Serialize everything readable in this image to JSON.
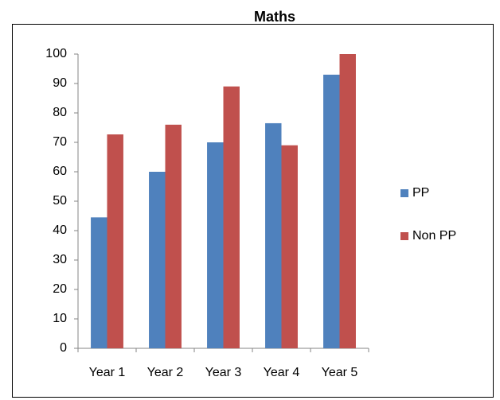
{
  "chart_data": {
    "type": "bar",
    "title": "Maths",
    "categories": [
      "Year 1",
      "Year 2",
      "Year 3",
      "Year 4",
      "Year 5"
    ],
    "series": [
      {
        "name": "PP",
        "color": "#4f81bd",
        "values": [
          44.5,
          60,
          70,
          76.5,
          93
        ]
      },
      {
        "name": "Non PP",
        "color": "#c0504d",
        "values": [
          72.7,
          76,
          89,
          69,
          100
        ]
      }
    ],
    "ylim": [
      0,
      100
    ],
    "yticks": [
      0,
      10,
      20,
      30,
      40,
      50,
      60,
      70,
      80,
      90,
      100
    ],
    "grid": false,
    "legend": "right"
  }
}
